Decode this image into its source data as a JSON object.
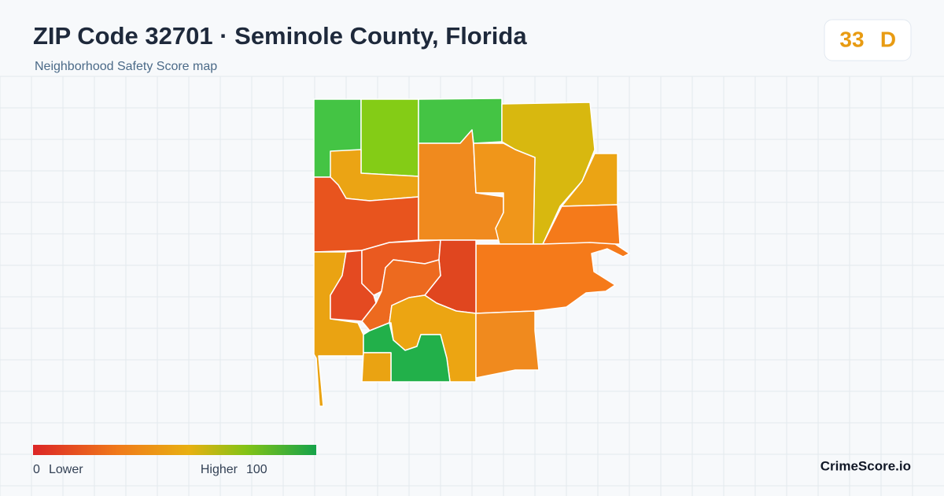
{
  "header": {
    "title": "ZIP Code 32701 · Seminole County, Florida",
    "subtitle": "Neighborhood Safety Score map"
  },
  "score": {
    "value": 33,
    "grade": "D"
  },
  "legend": {
    "min": 0,
    "min_label": "Lower",
    "max_label": "Higher",
    "max": 100
  },
  "brand": "CrimeScore.io"
}
